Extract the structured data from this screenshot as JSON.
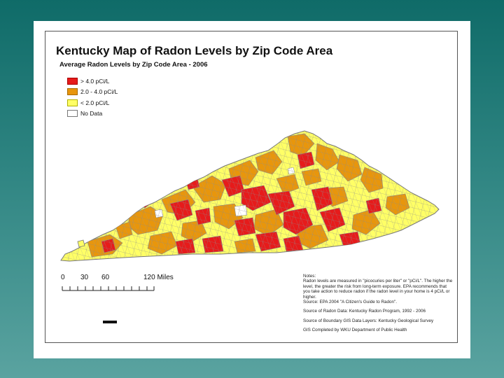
{
  "map": {
    "title": "Kentucky Map of Radon Levels by Zip Code Area",
    "subtitle": "Average Radon Levels by Zip Code Area - 2006",
    "legend": [
      {
        "label": "> 4.0 pCi/L",
        "color": "#e61b1b"
      },
      {
        "label": "2.0 - 4.0 pCi/L",
        "color": "#e8960c"
      },
      {
        "label": "< 2.0 pCi/L",
        "color": "#ffff66"
      },
      {
        "label": "No Data",
        "color": "#ffffff"
      }
    ],
    "scale": {
      "labels": [
        "0",
        "30",
        "60",
        "120 Miles"
      ]
    },
    "notes": {
      "heading": "Notes:",
      "body": "Radon levels are measured in \"picocuries per liter\" or \"pCi/L\". The higher the level, the greater the risk from long-term exposure. EPA recommends that you take action to reduce radon if the radon level in your home is 4 pCi/L or higher.",
      "source_epa": "Source: EPA 2004 \"A Citizen's Guide to Radon\".",
      "source_radon": "Source of Radon Data: Kentucky Radon Program, 1992 - 2006",
      "source_boundary": "Source of Boundary GIS Data Layers: Kentucky Geological Survey",
      "gis_credit": "GIS Completed by WKU Department of Public Health"
    },
    "colors": {
      "high": "#e61b1b",
      "medium": "#e8960c",
      "low": "#ffff66",
      "boundary": "#8a8a8a",
      "background_top": "#0f6b68",
      "background_bottom": "#5aa3a0"
    }
  }
}
